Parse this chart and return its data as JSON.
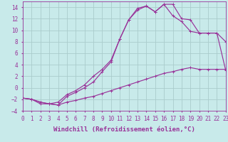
{
  "background_color": "#c8eaea",
  "grid_color": "#aacccc",
  "line_color": "#993399",
  "xlabel": "Windchill (Refroidissement éolien,°C)",
  "xlabel_fontsize": 6.5,
  "tick_fontsize": 5.5,
  "xlim": [
    0,
    23
  ],
  "ylim": [
    -4,
    15
  ],
  "yticks": [
    -4,
    -2,
    0,
    2,
    4,
    6,
    8,
    10,
    12,
    14
  ],
  "xticks": [
    0,
    1,
    2,
    3,
    4,
    5,
    6,
    7,
    8,
    9,
    10,
    11,
    12,
    13,
    14,
    15,
    16,
    17,
    18,
    19,
    20,
    21,
    22,
    23
  ],
  "curve1_x": [
    0,
    1,
    2,
    3,
    4,
    5,
    6,
    7,
    8,
    9,
    10,
    11,
    12,
    13,
    14,
    15,
    16,
    17,
    18,
    19,
    20,
    21,
    22,
    23
  ],
  "curve1_y": [
    -1.8,
    -2.0,
    -2.8,
    -2.8,
    -3.0,
    -2.5,
    -2.2,
    -1.8,
    -1.5,
    -1.0,
    -0.5,
    0.0,
    0.5,
    1.0,
    1.5,
    2.0,
    2.5,
    2.8,
    3.2,
    3.5,
    3.2,
    3.2,
    3.2,
    3.2
  ],
  "curve2_x": [
    0,
    1,
    2,
    3,
    4,
    5,
    6,
    7,
    8,
    9,
    10,
    11,
    12,
    13,
    14,
    15,
    16,
    17,
    18,
    19,
    20,
    21,
    22,
    23
  ],
  "curve2_y": [
    -1.8,
    -2.0,
    -2.5,
    -2.8,
    -3.0,
    -1.5,
    -0.8,
    0.0,
    1.0,
    2.8,
    4.5,
    8.5,
    11.8,
    13.8,
    14.2,
    13.2,
    14.5,
    12.5,
    11.5,
    9.8,
    9.5,
    9.5,
    9.5,
    3.0
  ],
  "curve3_x": [
    0,
    1,
    2,
    3,
    4,
    5,
    6,
    7,
    8,
    9,
    10,
    11,
    12,
    13,
    14,
    15,
    16,
    17,
    18,
    19,
    20,
    21,
    22,
    23
  ],
  "curve3_y": [
    -1.8,
    -2.0,
    -2.5,
    -2.8,
    -2.5,
    -1.2,
    -0.5,
    0.5,
    2.0,
    3.2,
    4.8,
    8.5,
    11.8,
    13.5,
    14.2,
    13.2,
    14.5,
    14.5,
    12.0,
    11.8,
    9.5,
    9.5,
    9.5,
    8.0
  ]
}
